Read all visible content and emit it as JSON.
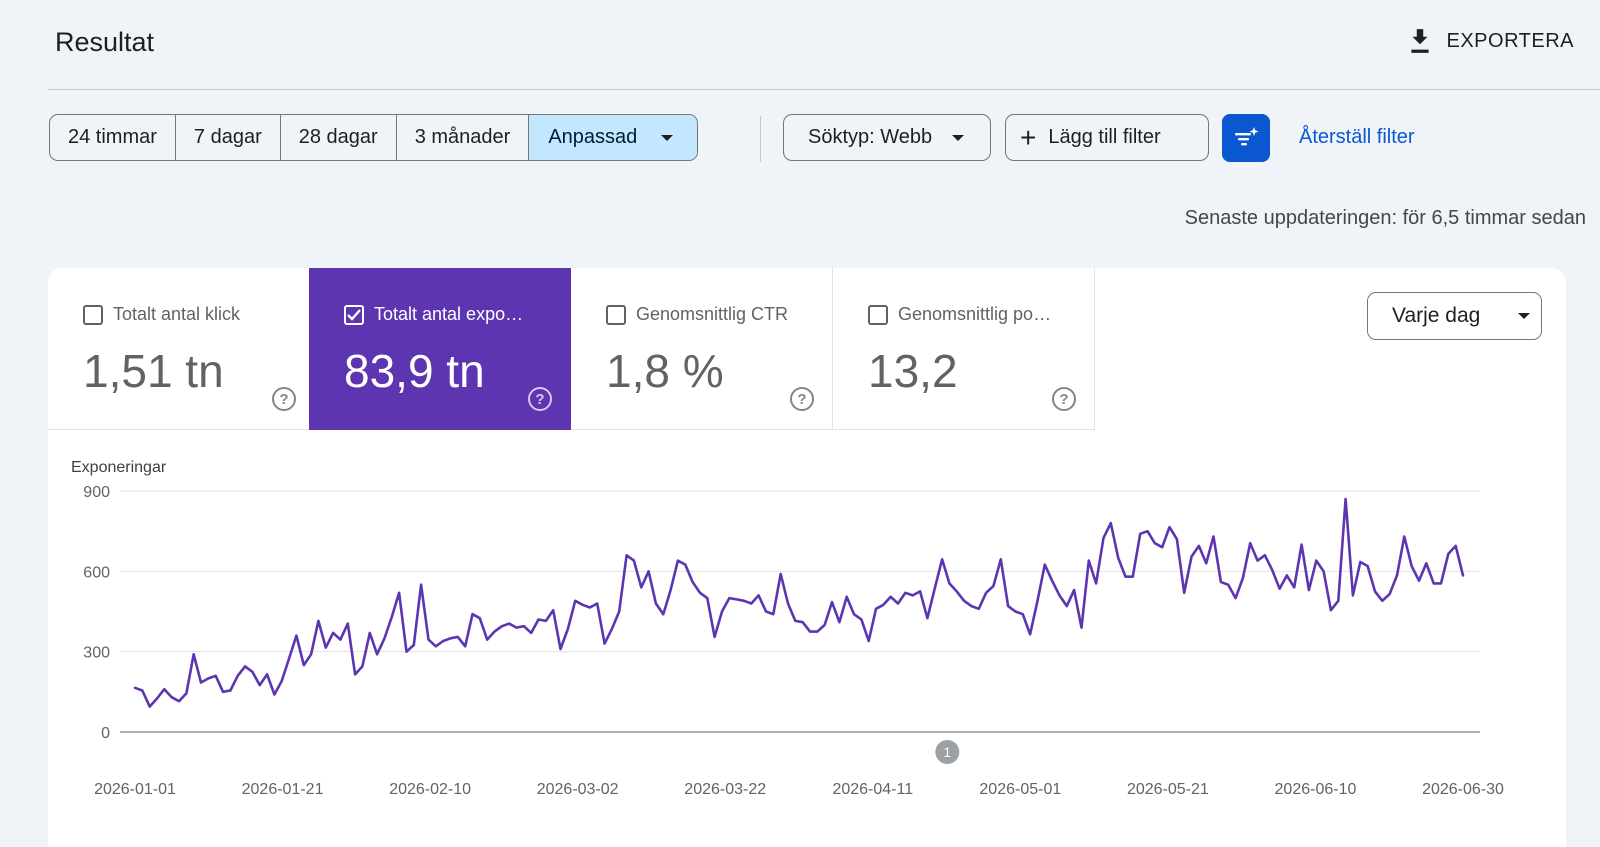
{
  "header": {
    "title": "Resultat",
    "export_label": "EXPORTERA"
  },
  "date_ranges": [
    {
      "label": "24 timmar",
      "active": false
    },
    {
      "label": "7 dagar",
      "active": false
    },
    {
      "label": "28 dagar",
      "active": false
    },
    {
      "label": "3 månader",
      "active": false
    },
    {
      "label": "Anpassad",
      "active": true
    }
  ],
  "filters": {
    "search_type_label": "Söktyp: Webb",
    "add_filter_label": "Lägg till filter",
    "reset_label": "Återställ filter"
  },
  "updated_text": "Senaste uppdateringen: för 6,5 timmar sedan",
  "metrics": [
    {
      "label": "Totalt antal klick",
      "value": "1,51 tn",
      "selected": false
    },
    {
      "label": "Totalt antal expo…",
      "value": "83,9 tn",
      "selected": true
    },
    {
      "label": "Genomsnittlig CTR",
      "value": "1,8 %",
      "selected": false
    },
    {
      "label": "Genomsnittlig po…",
      "value": "13,2",
      "selected": false
    }
  ],
  "interval_label": "Varje dag",
  "colors": {
    "accent": "#5e35b1",
    "line": "#5e35b1",
    "primary_button": "#0b57d0",
    "active_segment": "#c2e7ff"
  },
  "chart_data": {
    "type": "line",
    "ylabel": "Exponeringar",
    "ylim": [
      0,
      900
    ],
    "yticks": [
      "0",
      "300",
      "600",
      "900"
    ],
    "xticks": [
      "2026-01-01",
      "2026-01-21",
      "2026-02-10",
      "2026-03-02",
      "2026-03-22",
      "2026-04-11",
      "2026-05-01",
      "2026-05-21",
      "2026-06-10",
      "2026-06-30"
    ],
    "x_start": "2026-01-01",
    "x_end": "2026-06-30",
    "annotation": {
      "label": "1",
      "date": "2026-05-01"
    },
    "grid": true,
    "legend": "none",
    "series": [
      {
        "values": [
          165,
          155,
          95,
          125,
          160,
          130,
          115,
          145,
          290,
          185,
          200,
          210,
          150,
          155,
          210,
          245,
          225,
          175,
          215,
          140,
          190,
          275,
          360,
          250,
          290,
          415,
          315,
          370,
          345,
          405,
          215,
          245,
          370,
          290,
          350,
          430,
          520,
          300,
          325,
          550,
          345,
          320,
          340,
          350,
          355,
          320,
          440,
          425,
          345,
          375,
          395,
          405,
          390,
          395,
          370,
          420,
          415,
          455,
          310,
          385,
          490,
          475,
          465,
          480,
          330,
          385,
          450,
          660,
          640,
          540,
          600,
          480,
          440,
          530,
          640,
          625,
          560,
          520,
          500,
          355,
          450,
          500,
          495,
          490,
          480,
          510,
          450,
          440,
          590,
          480,
          415,
          410,
          375,
          375,
          400,
          485,
          410,
          505,
          440,
          420,
          340,
          460,
          475,
          505,
          480,
          520,
          510,
          525,
          425,
          535,
          645,
          555,
          525,
          490,
          470,
          460,
          520,
          545,
          645,
          470,
          450,
          440,
          365,
          490,
          625,
          565,
          510,
          470,
          530,
          390,
          640,
          555,
          725,
          780,
          650,
          580,
          580,
          740,
          750,
          705,
          690,
          765,
          720,
          520,
          655,
          695,
          630,
          730,
          560,
          550,
          500,
          575,
          705,
          640,
          660,
          605,
          535,
          585,
          540,
          700,
          530,
          640,
          600,
          455,
          490,
          870,
          510,
          635,
          620,
          525,
          490,
          515,
          585,
          730,
          620,
          565,
          630,
          555,
          555,
          665,
          695,
          585
        ]
      }
    ]
  }
}
